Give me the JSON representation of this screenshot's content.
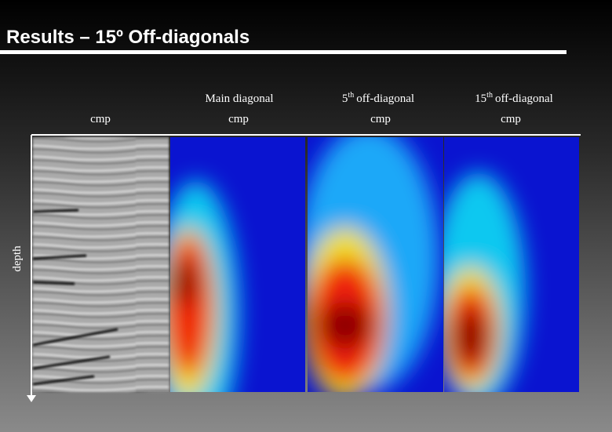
{
  "header": {
    "title": "Results – 15º Off-diagonals"
  },
  "axis": {
    "y_label": "depth"
  },
  "panels": [
    {
      "x_label": "cmp"
    },
    {
      "heading": {
        "text": "Main diagonal"
      },
      "x_label": "cmp"
    },
    {
      "heading": {
        "number": "5",
        "superscript": "th",
        "text": "off-diagonal"
      },
      "x_label": "cmp"
    },
    {
      "heading": {
        "number": "15",
        "superscript": "th",
        "text": "off-diagonal"
      },
      "x_label": "cmp"
    }
  ]
}
